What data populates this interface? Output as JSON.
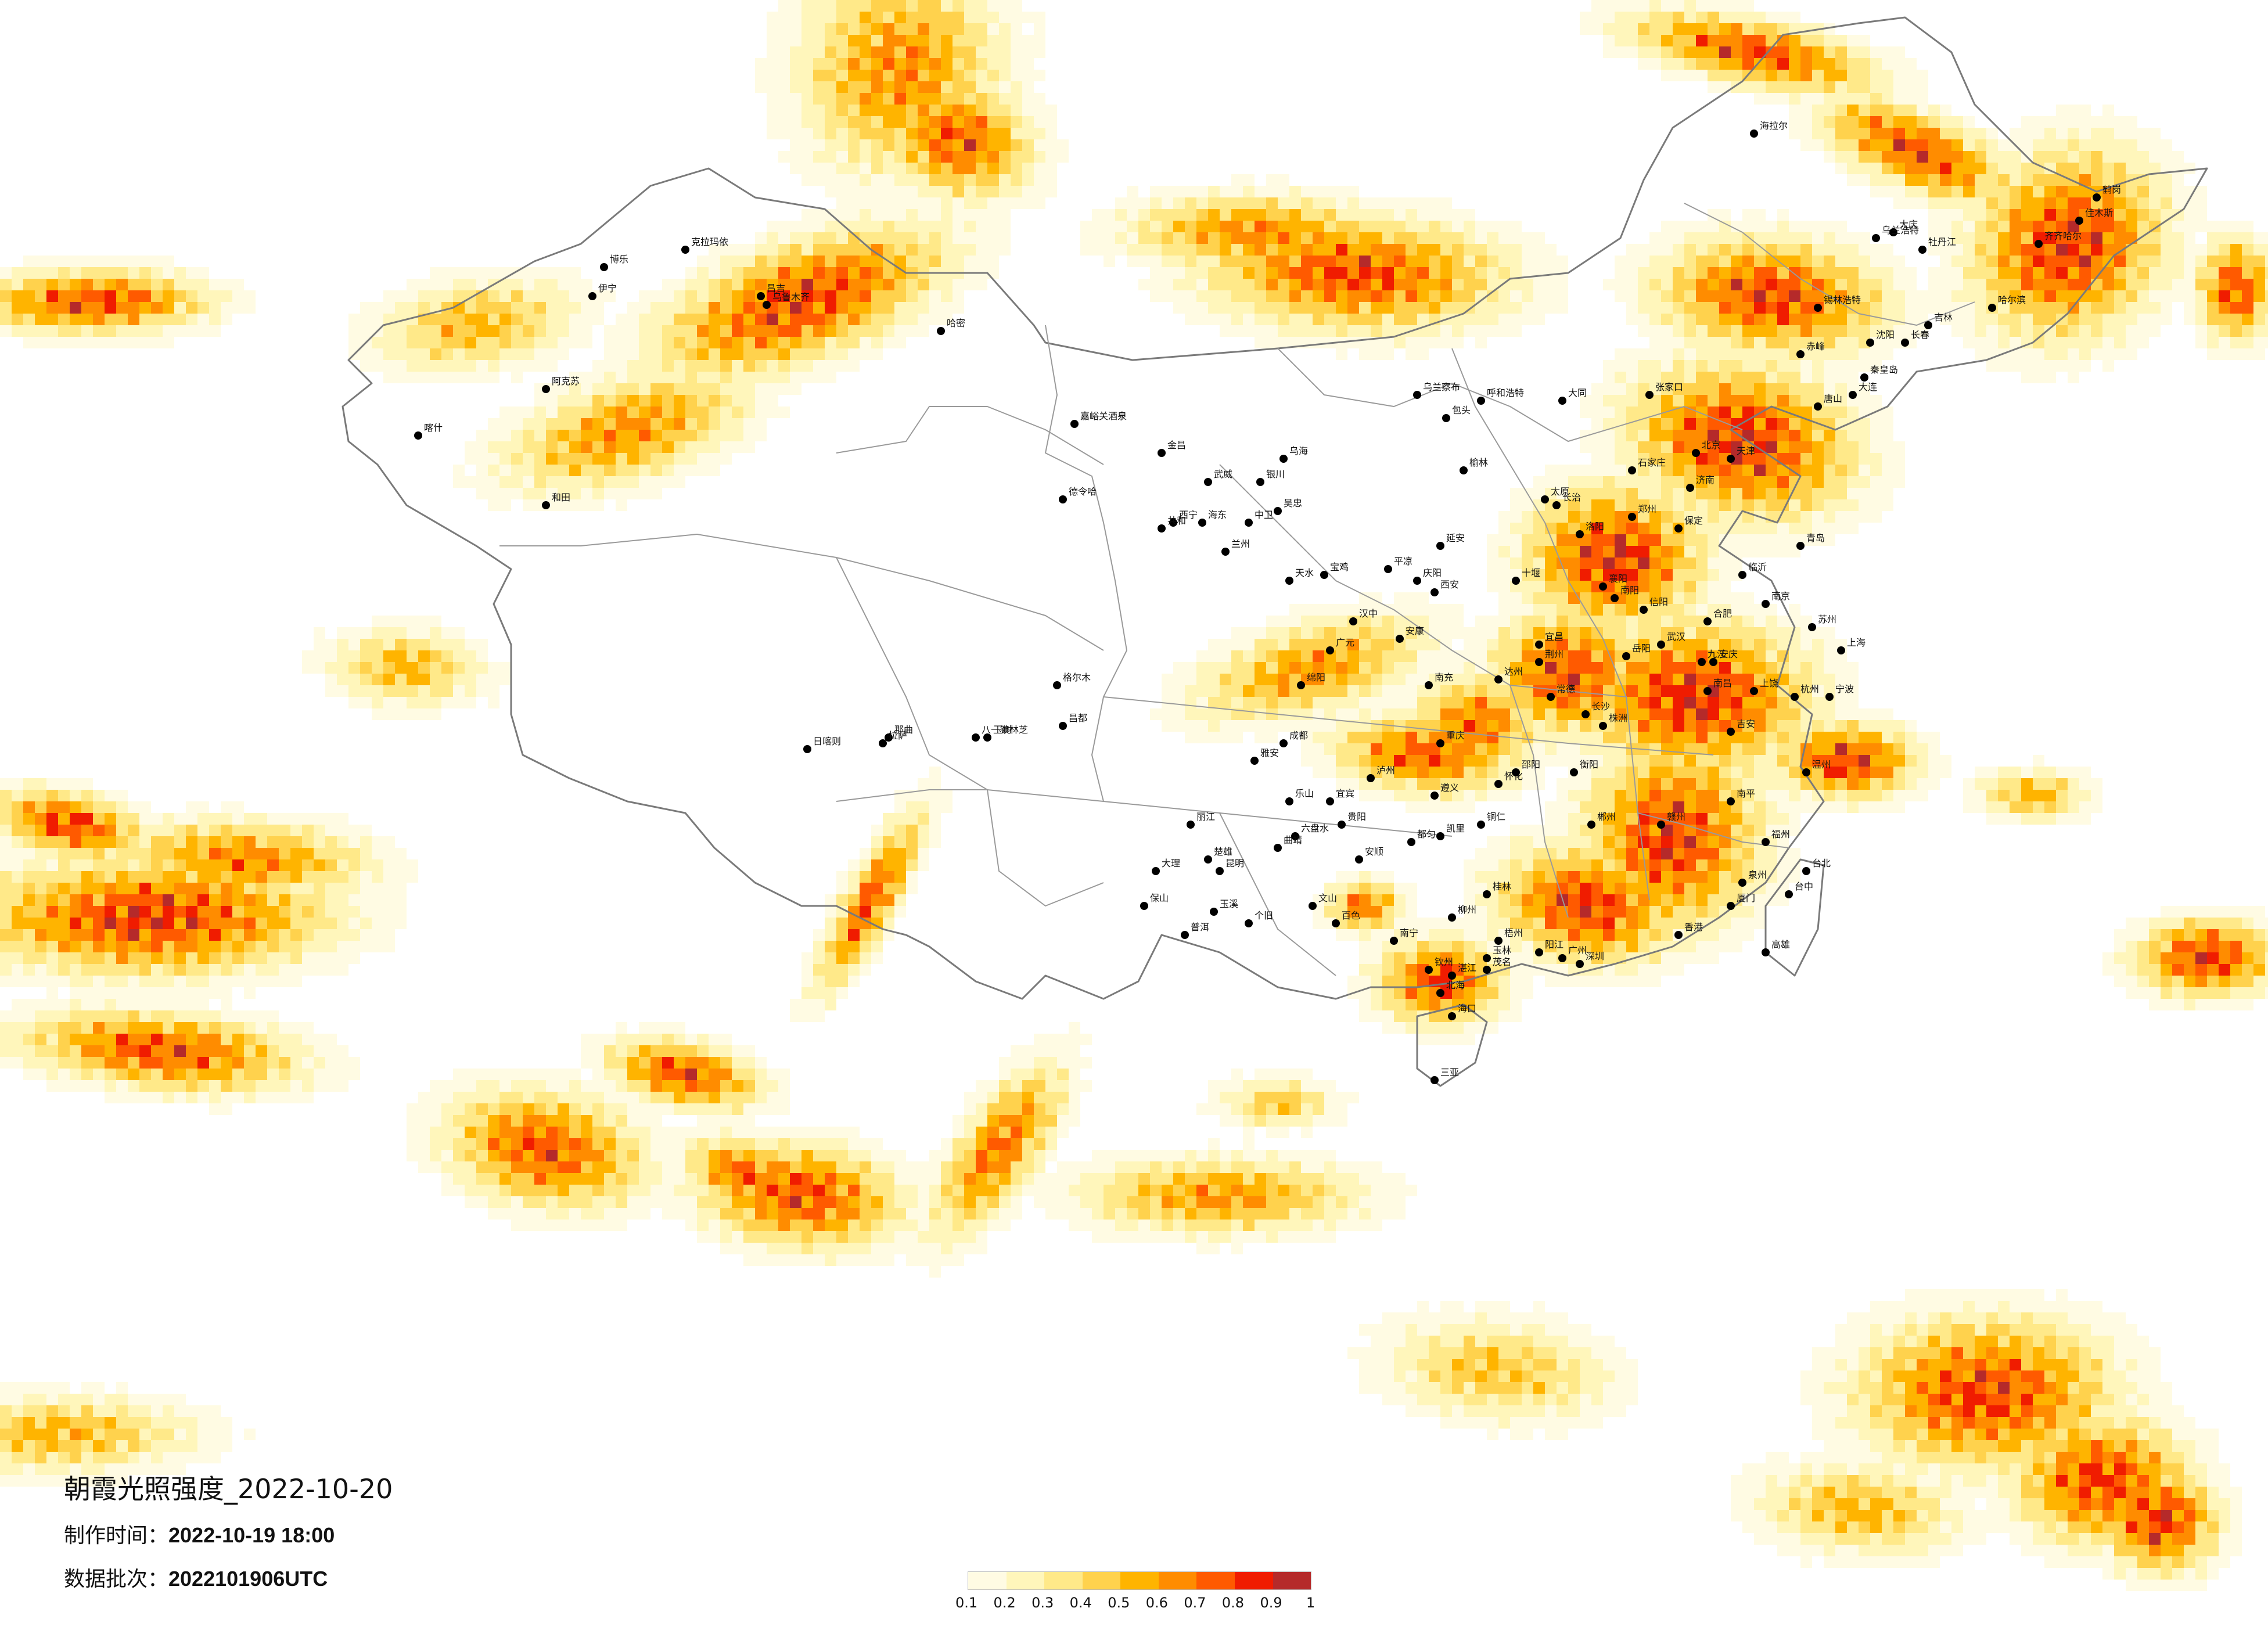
{
  "title": "朝霞光照强度_2022-10-20",
  "info": {
    "time_label": "制作时间：",
    "time_value": "2022-10-19 18:00",
    "batch_label": "数据批次：",
    "batch_value": "2022101906UTC"
  },
  "legend": {
    "colors": [
      "#fffbe3",
      "#fff6bb",
      "#ffe989",
      "#ffd24d",
      "#ffb400",
      "#ff8c00",
      "#ff5a00",
      "#f01c00",
      "#b52a2a"
    ],
    "ticks": [
      "0.1",
      "0.2",
      "0.3",
      "0.4",
      "0.5",
      "0.6",
      "0.7",
      "0.8",
      "0.9",
      "1"
    ]
  },
  "map": {
    "cities": [
      {
        "name": "克拉玛依"
      },
      {
        "name": "博乐"
      },
      {
        "name": "伊宁"
      },
      {
        "name": "昌吉"
      },
      {
        "name": "乌鲁木齐"
      },
      {
        "name": "哈密"
      },
      {
        "name": "阿克苏"
      },
      {
        "name": "喀什"
      },
      {
        "name": "和田"
      },
      {
        "name": "嘉峪关酒泉"
      },
      {
        "name": "金昌"
      },
      {
        "name": "武威"
      },
      {
        "name": "德令哈"
      },
      {
        "name": "西宁"
      },
      {
        "name": "海东"
      },
      {
        "name": "共和"
      },
      {
        "name": "格尔木"
      },
      {
        "name": "玉树"
      },
      {
        "name": "那曲"
      },
      {
        "name": "拉萨"
      },
      {
        "name": "日喀则"
      },
      {
        "name": "八一镇林芝"
      },
      {
        "name": "昌都"
      },
      {
        "name": "乌兰察布"
      },
      {
        "name": "呼和浩特"
      },
      {
        "name": "包头"
      },
      {
        "name": "乌海"
      },
      {
        "name": "银川"
      },
      {
        "name": "吴忠"
      },
      {
        "name": "中卫"
      },
      {
        "name": "兰州"
      },
      {
        "name": "天水"
      },
      {
        "name": "平凉"
      },
      {
        "name": "庆阳"
      },
      {
        "name": "延安"
      },
      {
        "name": "榆林"
      },
      {
        "name": "宝鸡"
      },
      {
        "name": "西安"
      },
      {
        "name": "汉中"
      },
      {
        "name": "安康"
      },
      {
        "name": "广元"
      },
      {
        "name": "绵阳"
      },
      {
        "name": "成都"
      },
      {
        "name": "雅安"
      },
      {
        "name": "乐山"
      },
      {
        "name": "宜宾"
      },
      {
        "name": "泸州"
      },
      {
        "name": "重庆"
      },
      {
        "name": "达州"
      },
      {
        "name": "南充"
      },
      {
        "name": "遵义"
      },
      {
        "name": "贵阳"
      },
      {
        "name": "六盘水"
      },
      {
        "name": "安顺"
      },
      {
        "name": "都匀"
      },
      {
        "name": "凯里"
      },
      {
        "name": "铜仁"
      },
      {
        "name": "昆明"
      },
      {
        "name": "曲靖"
      },
      {
        "name": "大理"
      },
      {
        "name": "丽江"
      },
      {
        "name": "保山"
      },
      {
        "name": "楚雄"
      },
      {
        "name": "玉溪"
      },
      {
        "name": "普洱"
      },
      {
        "name": "个旧"
      },
      {
        "name": "文山"
      },
      {
        "name": "百色"
      },
      {
        "name": "南宁"
      },
      {
        "name": "柳州"
      },
      {
        "name": "桂林"
      },
      {
        "name": "梧州"
      },
      {
        "name": "玉林"
      },
      {
        "name": "钦州"
      },
      {
        "name": "北海"
      },
      {
        "name": "湛江"
      },
      {
        "name": "茂名"
      },
      {
        "name": "阳江"
      },
      {
        "name": "广州"
      },
      {
        "name": "深圳"
      },
      {
        "name": "海口"
      },
      {
        "name": "三亚"
      },
      {
        "name": "长沙"
      },
      {
        "name": "株洲"
      },
      {
        "name": "衡阳"
      },
      {
        "name": "岳阳"
      },
      {
        "name": "常德"
      },
      {
        "name": "怀化"
      },
      {
        "name": "邵阳"
      },
      {
        "name": "郴州"
      },
      {
        "name": "武汉"
      },
      {
        "name": "宜昌"
      },
      {
        "name": "襄阳"
      },
      {
        "name": "十堰"
      },
      {
        "name": "荆州"
      },
      {
        "name": "南昌"
      },
      {
        "name": "九江"
      },
      {
        "name": "赣州"
      },
      {
        "name": "吉安"
      },
      {
        "name": "上饶"
      },
      {
        "name": "福州"
      },
      {
        "name": "厦门"
      },
      {
        "name": "泉州"
      },
      {
        "name": "南平"
      },
      {
        "name": "杭州"
      },
      {
        "name": "宁波"
      },
      {
        "name": "温州"
      },
      {
        "name": "上海"
      },
      {
        "name": "南京"
      },
      {
        "name": "苏州"
      },
      {
        "name": "合肥"
      },
      {
        "name": "安庆"
      },
      {
        "name": "郑州"
      },
      {
        "name": "洛阳"
      },
      {
        "name": "南阳"
      },
      {
        "name": "信阳"
      },
      {
        "name": "济南"
      },
      {
        "name": "青岛"
      },
      {
        "name": "临沂"
      },
      {
        "name": "太原"
      },
      {
        "name": "大同"
      },
      {
        "name": "长治"
      },
      {
        "name": "石家庄"
      },
      {
        "name": "保定"
      },
      {
        "name": "张家口"
      },
      {
        "name": "北京"
      },
      {
        "name": "天津"
      },
      {
        "name": "唐山"
      },
      {
        "name": "秦皇岛"
      },
      {
        "name": "赤峰"
      },
      {
        "name": "锡林浩特"
      },
      {
        "name": "沈阳"
      },
      {
        "name": "大连"
      },
      {
        "name": "长春"
      },
      {
        "name": "吉林"
      },
      {
        "name": "哈尔滨"
      },
      {
        "name": "齐齐哈尔"
      },
      {
        "name": "大庆"
      },
      {
        "name": "牡丹江"
      },
      {
        "name": "佳木斯"
      },
      {
        "name": "鹤岗"
      },
      {
        "name": "海拉尔"
      },
      {
        "name": "乌兰浩特"
      },
      {
        "name": "台北"
      },
      {
        "name": "台中"
      },
      {
        "name": "高雄"
      },
      {
        "name": "香港"
      }
    ]
  }
}
